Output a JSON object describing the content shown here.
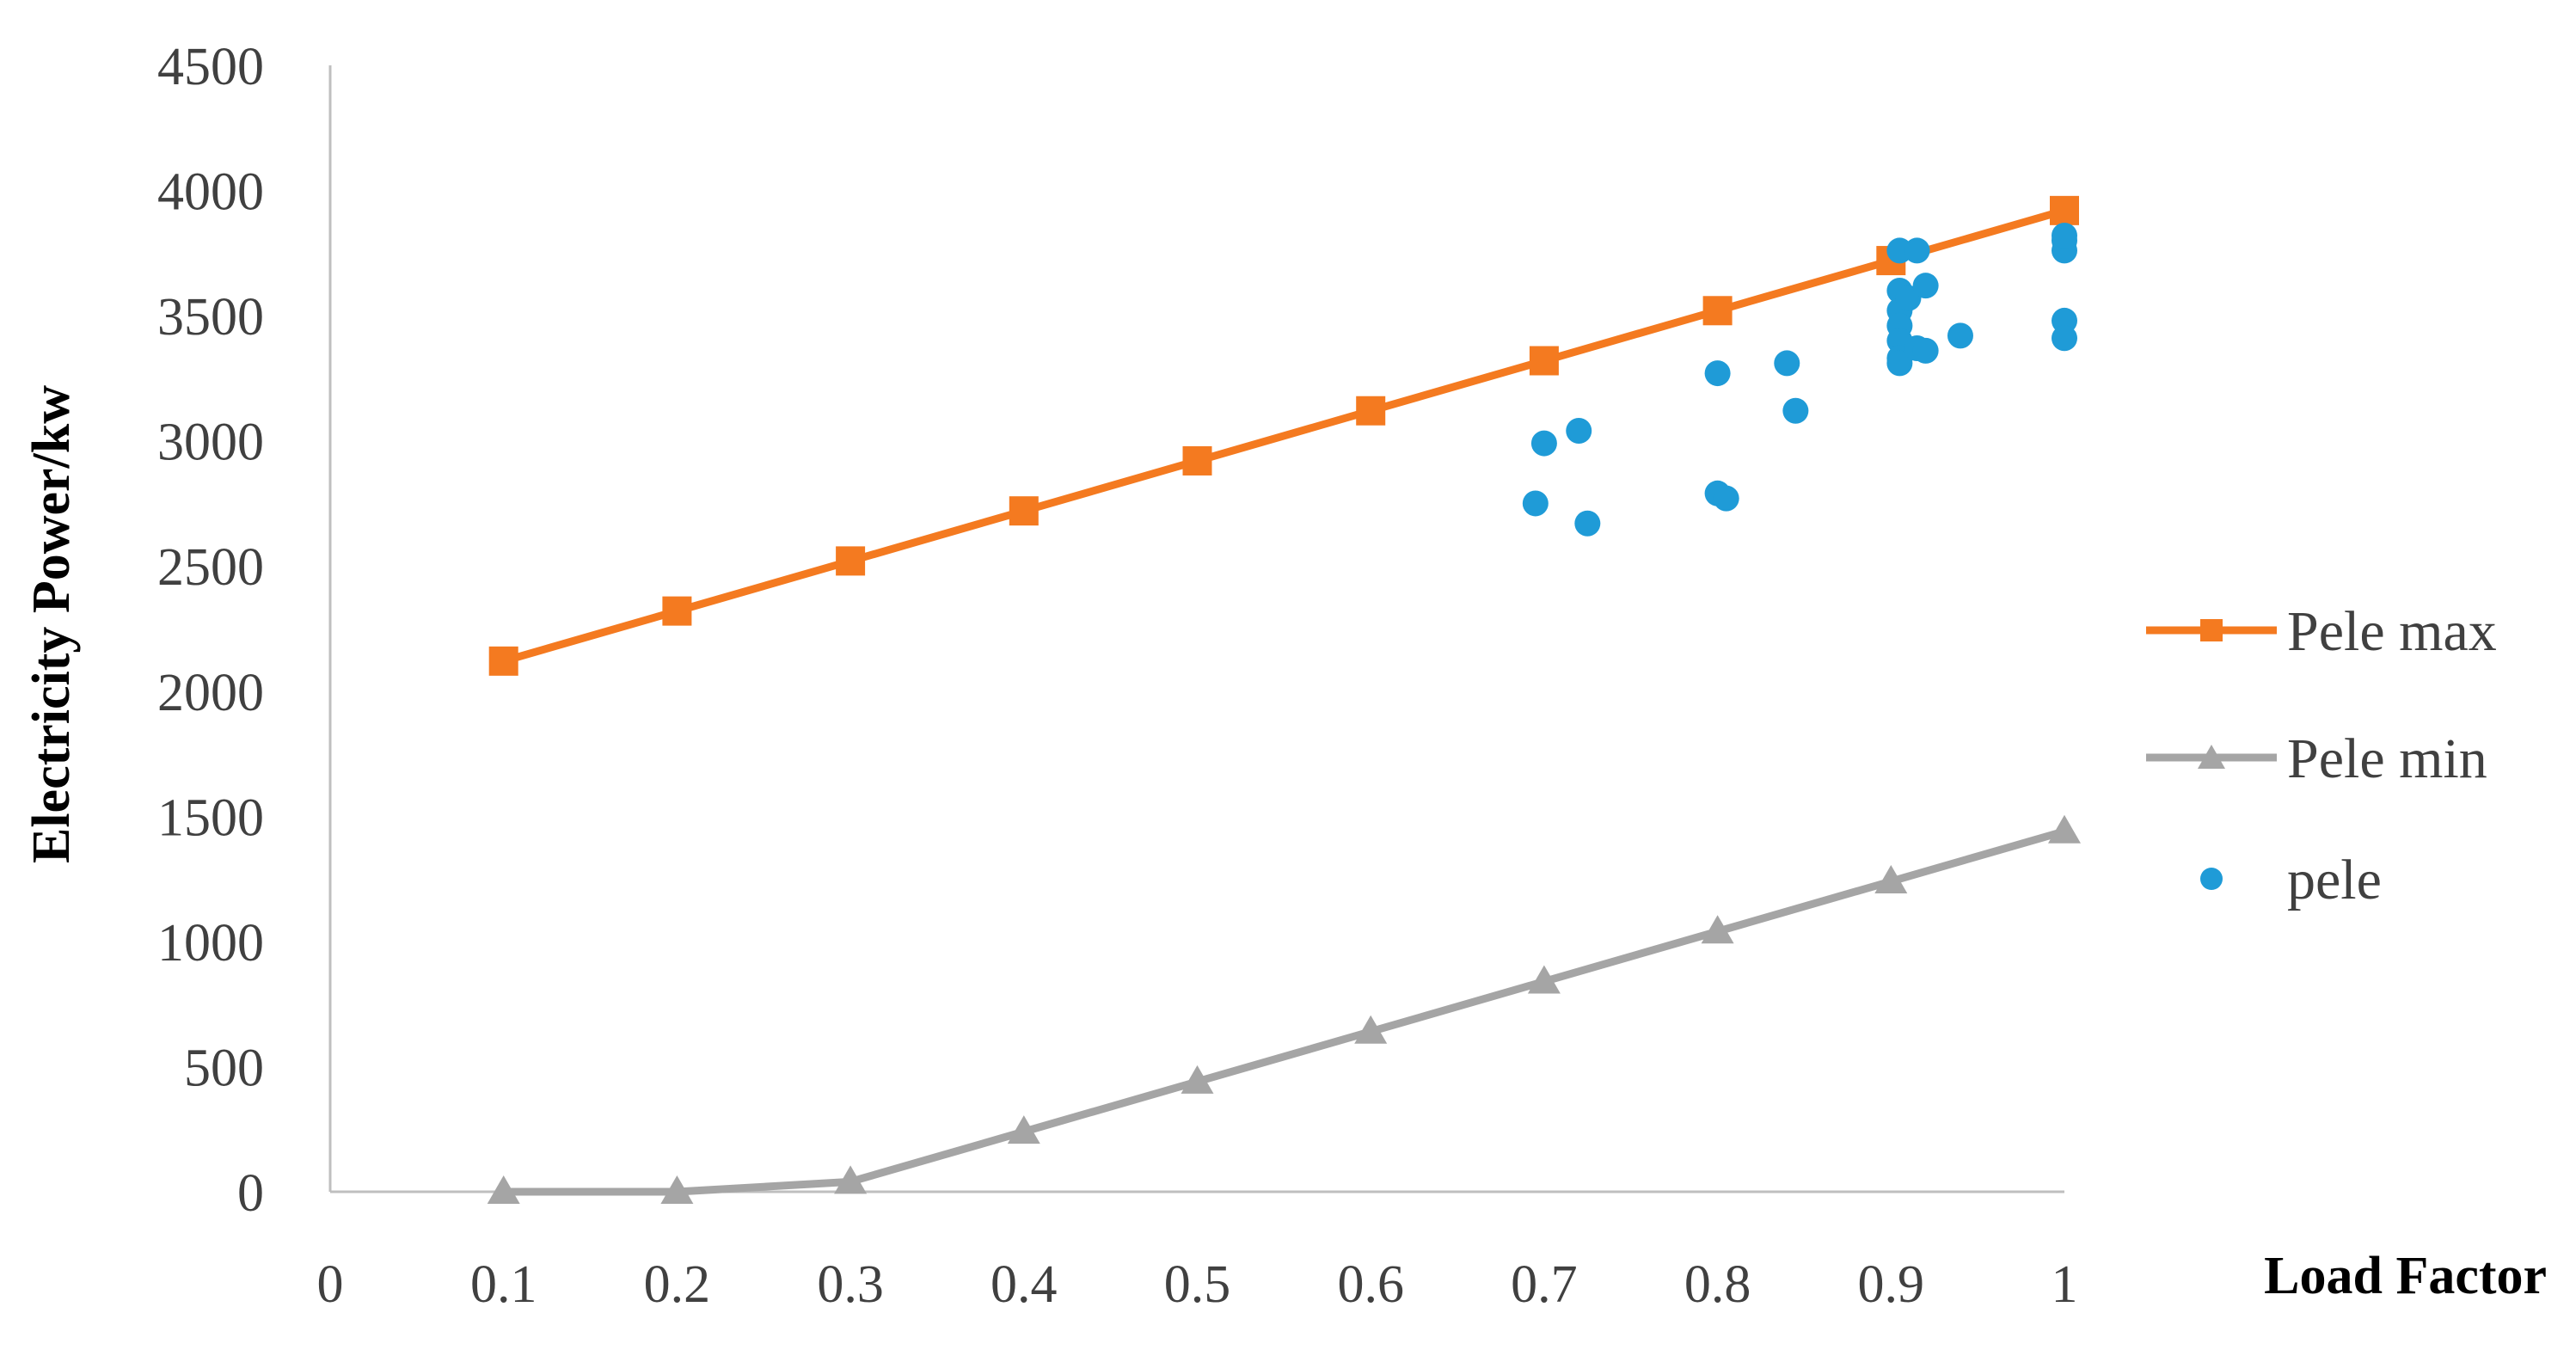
{
  "chart_data": {
    "type": "line",
    "title": "",
    "xlabel": "Load Factor",
    "ylabel": "Electricity Power/kw",
    "xlim": [
      0,
      1
    ],
    "ylim": [
      0,
      4500
    ],
    "x_ticks": [
      "0",
      "0.1",
      "0.2",
      "0.3",
      "0.4",
      "0.5",
      "0.6",
      "0.7",
      "0.8",
      "0.9",
      "1"
    ],
    "y_ticks": [
      "0",
      "500",
      "1000",
      "1500",
      "2000",
      "2500",
      "3000",
      "3500",
      "4000",
      "4500"
    ],
    "grid": false,
    "legend_position": "right",
    "series": [
      {
        "name": "Pele max",
        "kind": "line",
        "marker": "square",
        "color": "#F47A20",
        "x": [
          0.1,
          0.2,
          0.3,
          0.4,
          0.5,
          0.6,
          0.7,
          0.8,
          0.9,
          1.0
        ],
        "y": [
          2120,
          2320,
          2520,
          2720,
          2920,
          3120,
          3320,
          3520,
          3720,
          3920
        ]
      },
      {
        "name": "Pele min",
        "kind": "line",
        "marker": "triangle",
        "color": "#A5A5A5",
        "x": [
          0.1,
          0.2,
          0.3,
          0.4,
          0.5,
          0.6,
          0.7,
          0.8,
          0.9,
          1.0
        ],
        "y": [
          0,
          0,
          40,
          240,
          440,
          640,
          840,
          1040,
          1240,
          1440
        ]
      },
      {
        "name": "pele",
        "kind": "scatter",
        "marker": "circle",
        "color": "#1F9BD7",
        "x": [
          0.695,
          0.7,
          0.72,
          0.725,
          0.8,
          0.8,
          0.805,
          0.84,
          0.845,
          0.905,
          0.905,
          0.905,
          0.905,
          0.905,
          0.905,
          0.905,
          0.91,
          0.915,
          0.915,
          0.92,
          0.92,
          0.94,
          1.0,
          1.0,
          1.0,
          1.0,
          1.0
        ],
        "y": [
          2750,
          2990,
          3040,
          2670,
          3270,
          2790,
          2770,
          3310,
          3120,
          3760,
          3600,
          3520,
          3460,
          3400,
          3330,
          3310,
          3570,
          3760,
          3370,
          3620,
          3360,
          3420,
          3800,
          3760,
          3480,
          3410,
          3820
        ]
      }
    ]
  }
}
